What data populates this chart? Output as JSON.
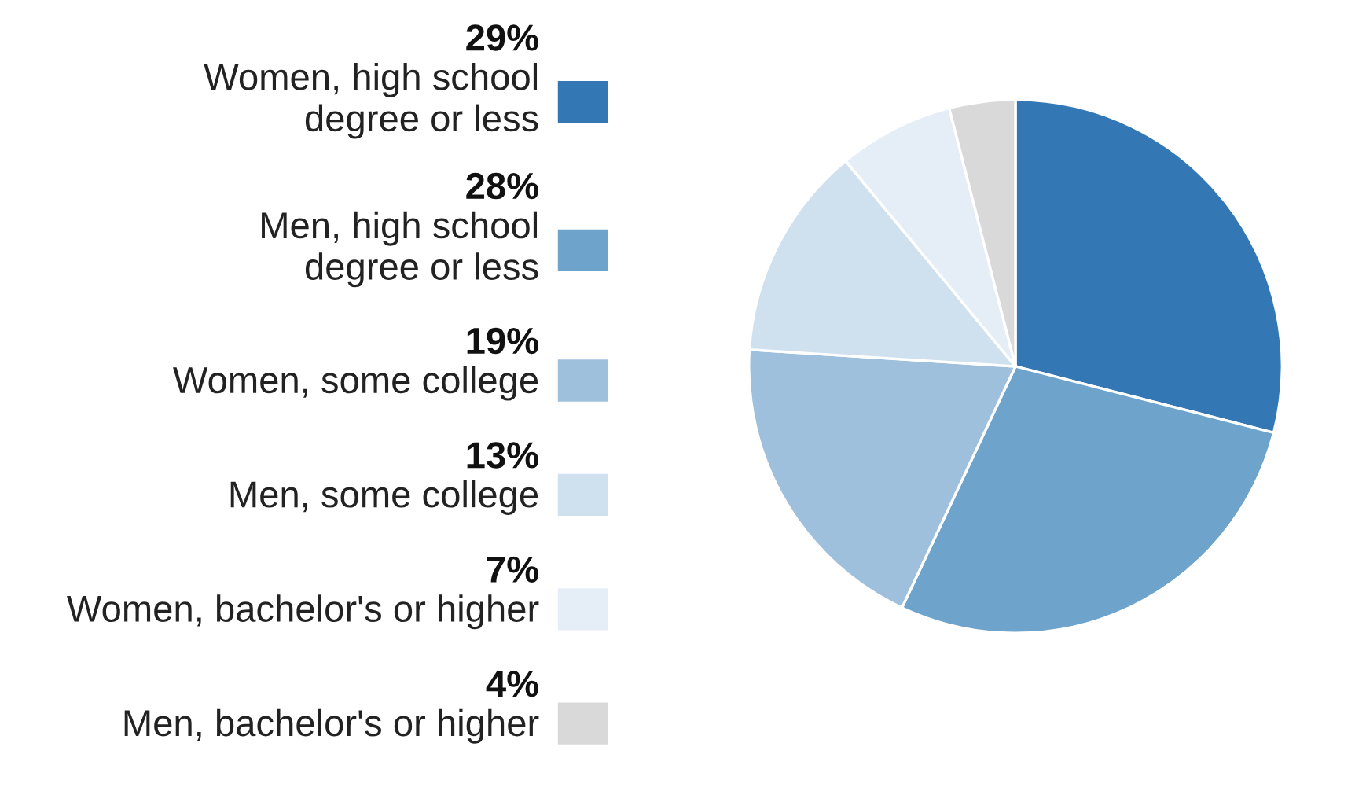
{
  "chart_data": {
    "type": "pie",
    "categories": [
      "Women, high school\ndegree or less",
      "Men, high school\ndegree or less",
      "Women, some college",
      "Men, some college",
      "Women, bachelor's or higher",
      "Men, bachelor's or higher"
    ],
    "values": [
      29,
      28,
      19,
      13,
      7,
      4
    ],
    "value_labels": [
      "29%",
      "28%",
      "19%",
      "13%",
      "7%",
      "4%"
    ],
    "colors": [
      "#3378b5",
      "#6ea3cc",
      "#9fc0dc",
      "#cfe0ee",
      "#e5eef7",
      "#d9d9d9"
    ],
    "legend": "left"
  }
}
